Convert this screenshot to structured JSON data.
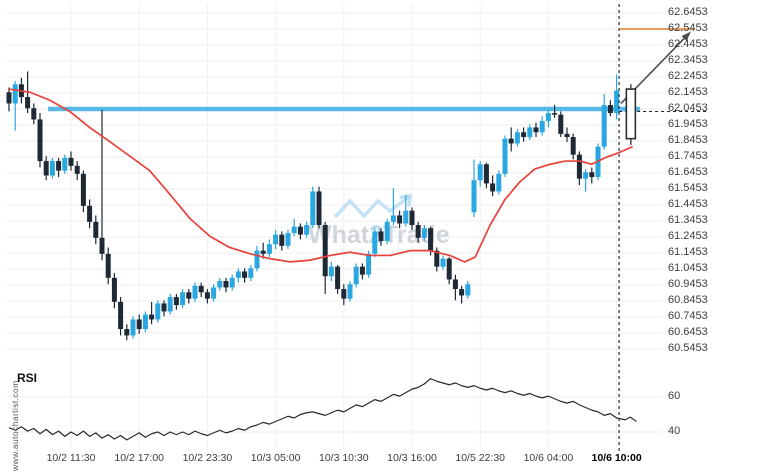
{
  "branding": {
    "vertical_site_text": "www.autochartist.com"
  },
  "watermark": {
    "brand_prefix": "What",
    "brand_accent": "2",
    "brand_suffix": "Trade"
  },
  "rsi_pane": {
    "title": "RSI"
  },
  "chart_data": {
    "type": "candlestick",
    "title": "",
    "y_axis": {
      "tick_labels": [
        "62.6453",
        "62.5453",
        "62.4453",
        "62.3453",
        "62.2453",
        "62.1453",
        "62.0453",
        "61.9453",
        "61.8453",
        "61.7453",
        "61.6453",
        "61.5453",
        "61.4453",
        "61.3453",
        "61.2453",
        "61.1453",
        "61.0453",
        "60.9453",
        "60.8453",
        "60.7453",
        "60.6453",
        "60.5453"
      ],
      "price_step": 0.1
    },
    "x_axis": {
      "tick_labels": [
        "10/2 11:30",
        "10/2 17:00",
        "10/2 23:30",
        "10/3 05:00",
        "10/3 10:30",
        "10/3 16:00",
        "10/5 22:30",
        "10/6 04:00",
        "10/6 10:00"
      ],
      "bold_label": "10/6 10:00",
      "tick_bar_indices": [
        10,
        21,
        32,
        43,
        54,
        65,
        76,
        87,
        98
      ]
    },
    "rsi_axis": {
      "tick_labels": [
        "60",
        "40"
      ],
      "tick_values": [
        60,
        40
      ]
    },
    "candles_ohlc": [
      [
        62.15,
        62.18,
        62.03,
        62.08
      ],
      [
        62.08,
        62.22,
        61.91,
        62.2
      ],
      [
        62.2,
        62.24,
        62.08,
        62.12
      ],
      [
        62.12,
        62.28,
        62.02,
        62.05
      ],
      [
        62.05,
        62.08,
        61.95,
        61.98
      ],
      [
        61.98,
        62.02,
        61.68,
        61.72
      ],
      [
        61.72,
        61.75,
        61.6,
        61.63
      ],
      [
        61.63,
        61.74,
        61.61,
        61.72
      ],
      [
        61.72,
        61.74,
        61.62,
        61.66
      ],
      [
        61.66,
        61.76,
        61.64,
        61.74
      ],
      [
        61.74,
        61.78,
        61.66,
        61.69
      ],
      [
        61.69,
        61.72,
        61.6,
        61.64
      ],
      [
        61.64,
        61.66,
        61.4,
        61.44
      ],
      [
        61.44,
        61.48,
        61.3,
        61.34
      ],
      [
        61.34,
        61.38,
        61.2,
        61.24
      ],
      [
        61.24,
        62.04,
        61.1,
        61.14
      ],
      [
        61.14,
        61.18,
        60.95,
        60.99
      ],
      [
        60.99,
        61.02,
        60.8,
        60.84
      ],
      [
        60.84,
        60.87,
        60.63,
        60.67
      ],
      [
        60.67,
        60.7,
        60.6,
        60.63
      ],
      [
        60.63,
        60.75,
        60.61,
        60.73
      ],
      [
        60.73,
        60.76,
        60.64,
        60.67
      ],
      [
        60.67,
        60.78,
        60.65,
        60.76
      ],
      [
        60.76,
        60.84,
        60.7,
        60.73
      ],
      [
        60.73,
        60.85,
        60.71,
        60.83
      ],
      [
        60.83,
        60.85,
        60.75,
        60.78
      ],
      [
        60.78,
        60.89,
        60.76,
        60.87
      ],
      [
        60.87,
        60.89,
        60.79,
        60.82
      ],
      [
        60.82,
        60.92,
        60.8,
        60.9
      ],
      [
        60.9,
        60.92,
        60.83,
        60.86
      ],
      [
        60.86,
        60.96,
        60.84,
        60.94
      ],
      [
        60.94,
        60.96,
        60.87,
        60.9
      ],
      [
        60.9,
        60.92,
        60.83,
        60.86
      ],
      [
        60.86,
        60.95,
        60.84,
        60.93
      ],
      [
        60.93,
        60.99,
        60.91,
        60.97
      ],
      [
        60.97,
        60.99,
        60.9,
        60.93
      ],
      [
        60.93,
        61.01,
        60.91,
        60.99
      ],
      [
        60.99,
        61.05,
        60.96,
        61.03
      ],
      [
        61.03,
        61.05,
        60.96,
        60.99
      ],
      [
        60.99,
        61.07,
        60.97,
        61.05
      ],
      [
        61.05,
        61.19,
        61.03,
        61.16
      ],
      [
        61.16,
        61.21,
        61.11,
        61.14
      ],
      [
        61.14,
        61.23,
        61.12,
        61.2
      ],
      [
        61.2,
        61.29,
        61.17,
        61.26
      ],
      [
        61.26,
        61.28,
        61.16,
        61.19
      ],
      [
        61.19,
        61.29,
        61.17,
        61.27
      ],
      [
        61.27,
        61.36,
        61.25,
        61.31
      ],
      [
        61.31,
        61.33,
        61.23,
        61.26
      ],
      [
        61.26,
        61.34,
        61.24,
        61.32
      ],
      [
        61.32,
        61.56,
        61.3,
        61.53
      ],
      [
        61.53,
        61.56,
        61.3,
        61.32
      ],
      [
        61.32,
        61.34,
        60.89,
        61.0
      ],
      [
        61.0,
        61.09,
        60.97,
        61.06
      ],
      [
        61.06,
        61.07,
        60.89,
        60.92
      ],
      [
        60.92,
        60.95,
        60.82,
        60.86
      ],
      [
        60.86,
        60.97,
        60.84,
        60.95
      ],
      [
        60.95,
        61.08,
        60.93,
        61.06
      ],
      [
        61.06,
        61.08,
        60.98,
        61.01
      ],
      [
        61.01,
        61.16,
        60.99,
        61.14
      ],
      [
        61.14,
        61.3,
        61.12,
        61.28
      ],
      [
        61.28,
        61.3,
        61.19,
        61.22
      ],
      [
        61.22,
        61.36,
        61.2,
        61.34
      ],
      [
        61.34,
        61.55,
        61.32,
        61.38
      ],
      [
        61.38,
        61.41,
        61.3,
        61.33
      ],
      [
        61.33,
        61.51,
        61.31,
        61.41
      ],
      [
        61.41,
        61.43,
        61.29,
        61.32
      ],
      [
        61.32,
        61.34,
        61.21,
        61.24
      ],
      [
        61.24,
        61.32,
        61.22,
        61.3
      ],
      [
        61.3,
        61.31,
        61.13,
        61.16
      ],
      [
        61.16,
        61.18,
        61.03,
        61.06
      ],
      [
        61.06,
        61.13,
        61.04,
        61.11
      ],
      [
        61.11,
        61.12,
        60.95,
        60.98
      ],
      [
        60.98,
        61.01,
        60.85,
        60.92
      ],
      [
        60.92,
        60.94,
        60.83,
        60.88
      ],
      [
        60.88,
        60.97,
        60.86,
        60.95
      ],
      [
        61.4,
        61.73,
        61.37,
        61.6
      ],
      [
        61.6,
        61.72,
        61.56,
        61.7
      ],
      [
        61.7,
        61.71,
        61.55,
        61.58
      ],
      [
        61.58,
        61.63,
        61.5,
        61.53
      ],
      [
        61.53,
        61.66,
        61.51,
        61.64
      ],
      [
        61.64,
        61.88,
        61.62,
        61.86
      ],
      [
        61.86,
        61.93,
        61.78,
        61.83
      ],
      [
        61.83,
        61.92,
        61.81,
        61.9
      ],
      [
        61.9,
        61.93,
        61.84,
        61.87
      ],
      [
        61.87,
        61.95,
        61.85,
        61.93
      ],
      [
        61.93,
        61.96,
        61.87,
        61.9
      ],
      [
        61.9,
        62.0,
        61.88,
        61.97
      ],
      [
        61.97,
        62.04,
        61.93,
        62.02
      ],
      [
        62.02,
        62.07,
        61.99,
        62.01
      ],
      [
        62.01,
        62.03,
        61.87,
        61.89
      ],
      [
        61.89,
        61.93,
        61.84,
        61.87
      ],
      [
        61.87,
        61.89,
        61.73,
        61.76
      ],
      [
        61.76,
        61.78,
        61.57,
        61.61
      ],
      [
        61.61,
        61.67,
        61.53,
        61.65
      ],
      [
        61.65,
        61.68,
        61.58,
        61.62
      ],
      [
        61.62,
        61.83,
        61.6,
        61.81
      ],
      [
        61.81,
        62.14,
        61.79,
        62.07
      ],
      [
        62.07,
        62.1,
        62.0,
        62.02
      ],
      [
        62.02,
        62.26,
        61.98,
        62.16
      ]
    ],
    "ma_line_points": [
      [
        0,
        62.17
      ],
      [
        3.4,
        62.15
      ],
      [
        6.6,
        62.1
      ],
      [
        9.8,
        62.03
      ],
      [
        13,
        61.93
      ],
      [
        16.3,
        61.84
      ],
      [
        19.5,
        61.75
      ],
      [
        22.7,
        61.66
      ],
      [
        26,
        61.51
      ],
      [
        29.2,
        61.36
      ],
      [
        32.4,
        61.25
      ],
      [
        35.6,
        61.18
      ],
      [
        38.9,
        61.14
      ],
      [
        42.1,
        61.11
      ],
      [
        45.3,
        61.09
      ],
      [
        48.5,
        61.1
      ],
      [
        51.8,
        61.13
      ],
      [
        55,
        61.15
      ],
      [
        58.2,
        61.13
      ],
      [
        61.5,
        61.13
      ],
      [
        64.7,
        61.16
      ],
      [
        67.9,
        61.16
      ],
      [
        71.1,
        61.13
      ],
      [
        73.5,
        61.09
      ],
      [
        75.2,
        61.12
      ],
      [
        77.6,
        61.32
      ],
      [
        80,
        61.48
      ],
      [
        82.4,
        61.59
      ],
      [
        84.8,
        61.67
      ],
      [
        87.3,
        61.7
      ],
      [
        89.7,
        61.72
      ],
      [
        92.1,
        61.72
      ],
      [
        94,
        61.7
      ],
      [
        96.1,
        61.74
      ],
      [
        98.2,
        61.77
      ],
      [
        100.6,
        61.81
      ]
    ],
    "rsi_values": [
      42.5,
      41,
      43,
      40.5,
      42,
      39,
      41.5,
      38.5,
      40.5,
      37.5,
      40,
      38,
      40.5,
      37.5,
      39.5,
      36.5,
      38.5,
      36,
      38,
      35.5,
      37.5,
      39.5,
      37,
      39,
      40,
      38,
      40,
      38.5,
      40,
      38.5,
      40.5,
      39,
      38,
      39.5,
      41,
      39.5,
      40.5,
      42,
      41,
      43,
      44,
      45.5,
      44.5,
      46,
      47.5,
      49,
      48,
      50,
      51,
      51.5,
      50.5,
      49.5,
      51,
      52.5,
      51.5,
      53.5,
      55.5,
      54.5,
      56.5,
      58.5,
      57.5,
      59.5,
      61.5,
      60.5,
      62.5,
      64.5,
      65.5,
      67.5,
      70.5,
      69,
      68,
      67,
      68,
      66.5,
      65.5,
      66.5,
      65,
      64,
      65,
      63.5,
      62.5,
      63.5,
      62,
      61,
      62,
      60.5,
      59.5,
      60.5,
      59,
      57.5,
      56.5,
      57.5,
      55.5,
      54,
      52.5,
      51.5,
      49.5,
      50.5,
      48
    ],
    "rsi_tail_points": [
      [
        99.4,
        47
      ],
      [
        100.2,
        48.5
      ],
      [
        101.2,
        46
      ]
    ],
    "overlays": {
      "resistance_line": {
        "level": 62.0453,
        "from_bar": 6.3,
        "to_bar": 101.8
      },
      "target_line": {
        "level": 62.5453,
        "from_bar": 98.4,
        "to_bar": 110.6
      },
      "price_marker_dashed": {
        "level": 62.03,
        "from_bar": 98.4,
        "to_bar": 112.8
      },
      "forecast_time_dashed_bar": 98.4,
      "breakout_arrow": {
        "from": [
          98.7,
          62.08
        ],
        "to": [
          110,
          62.53
        ]
      },
      "forecast_candle": {
        "open": 61.86,
        "high": 62.2,
        "low": 61.82,
        "close": 62.17,
        "bar": 100.3,
        "style": "hollow"
      }
    },
    "colors": {
      "up": "#2aa7e0",
      "down": "#1e2935",
      "ma": "#e8403a",
      "rsi": "#2a2a2a",
      "resistance": "#45b2e6",
      "target": "#e07b28",
      "arrow": "#4d4d4d",
      "grid": "#ededed",
      "vgrid": "#f0f0f0",
      "dashed": "#17323f",
      "watermark_text": "#c9ced6",
      "watermark_accent": "#a6d3f0",
      "watermark_logo": "#b5d9f2"
    },
    "legend": "none",
    "grid": "on"
  }
}
